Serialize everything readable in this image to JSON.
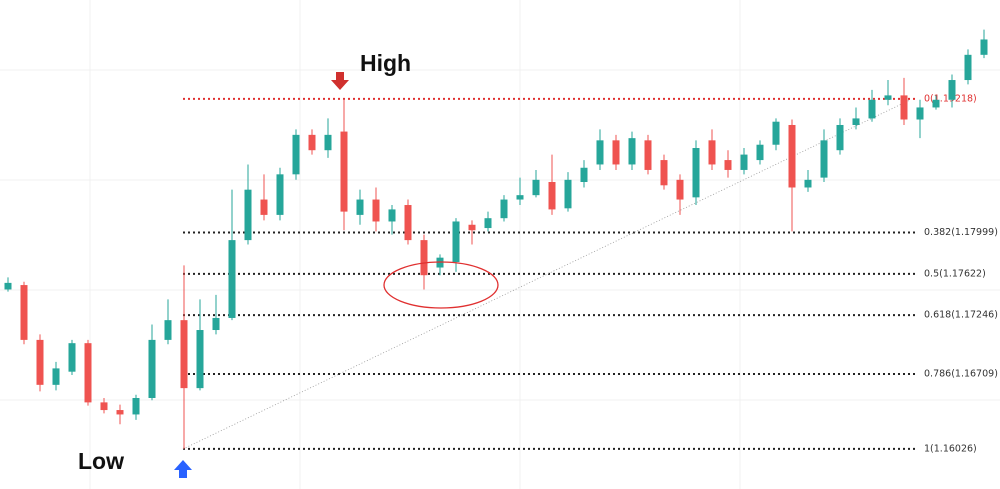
{
  "chart_data": {
    "type": "candlestick",
    "annotations": {
      "high": "High",
      "low": "Low"
    },
    "up_color": "#26a69a",
    "down_color": "#ef5350",
    "ylim": [
      1.1566,
      1.2012
    ],
    "fib_levels": [
      {
        "ratio": 0,
        "price": 1.19218,
        "label": "0(1.19218)",
        "color": "#e03030"
      },
      {
        "ratio": 0.382,
        "price": 1.17999,
        "label": "0.382(1.17999)",
        "color": "#222222"
      },
      {
        "ratio": 0.5,
        "price": 1.17622,
        "label": "0.5(1.17622)",
        "color": "#222222"
      },
      {
        "ratio": 0.618,
        "price": 1.17246,
        "label": "0.618(1.17246)",
        "color": "#222222"
      },
      {
        "ratio": 0.786,
        "price": 1.16709,
        "label": "0.786(1.16709)",
        "color": "#222222"
      },
      {
        "ratio": 1,
        "price": 1.16026,
        "label": "1(1.16026)",
        "color": "#222222"
      }
    ],
    "candles": [
      [
        1.1748,
        1.1759,
        1.1746,
        1.1754
      ],
      [
        1.1752,
        1.1755,
        1.1698,
        1.1702
      ],
      [
        1.1702,
        1.1707,
        1.1655,
        1.1661
      ],
      [
        1.1661,
        1.1682,
        1.1656,
        1.1676
      ],
      [
        1.1673,
        1.1702,
        1.167,
        1.1699
      ],
      [
        1.1699,
        1.1702,
        1.1642,
        1.1645
      ],
      [
        1.1645,
        1.1649,
        1.1635,
        1.1638
      ],
      [
        1.1638,
        1.1643,
        1.1625,
        1.1634
      ],
      [
        1.1634,
        1.1652,
        1.1629,
        1.1649
      ],
      [
        1.1649,
        1.1716,
        1.1647,
        1.1702
      ],
      [
        1.1702,
        1.1739,
        1.1698,
        1.172
      ],
      [
        1.172,
        1.177,
        1.16026,
        1.1658
      ],
      [
        1.1658,
        1.1739,
        1.1656,
        1.1711
      ],
      [
        1.1711,
        1.1743,
        1.1707,
        1.1722
      ],
      [
        1.1722,
        1.1839,
        1.172,
        1.1793
      ],
      [
        1.1793,
        1.1862,
        1.1789,
        1.1839
      ],
      [
        1.183,
        1.1853,
        1.1811,
        1.1816
      ],
      [
        1.1816,
        1.1859,
        1.1811,
        1.1853
      ],
      [
        1.1853,
        1.1894,
        1.1848,
        1.1889
      ],
      [
        1.1889,
        1.1894,
        1.1871,
        1.1875
      ],
      [
        1.1875,
        1.1904,
        1.1868,
        1.1889
      ],
      [
        1.1892,
        1.19218,
        1.1802,
        1.1819
      ],
      [
        1.1816,
        1.1839,
        1.1807,
        1.183
      ],
      [
        1.183,
        1.1841,
        1.1801,
        1.181
      ],
      [
        1.181,
        1.1825,
        1.1798,
        1.1821
      ],
      [
        1.1825,
        1.183,
        1.1789,
        1.1793
      ],
      [
        1.1793,
        1.1798,
        1.1748,
        1.1761
      ],
      [
        1.1768,
        1.178,
        1.1761,
        1.1777
      ],
      [
        1.1773,
        1.1813,
        1.1764,
        1.181
      ],
      [
        1.1807,
        1.1811,
        1.1789,
        1.1802
      ],
      [
        1.1804,
        1.1819,
        1.1801,
        1.1813
      ],
      [
        1.1813,
        1.1834,
        1.181,
        1.183
      ],
      [
        1.183,
        1.185,
        1.1825,
        1.1834
      ],
      [
        1.1834,
        1.1857,
        1.1832,
        1.1848
      ],
      [
        1.1846,
        1.1871,
        1.1816,
        1.1821
      ],
      [
        1.1822,
        1.1855,
        1.1819,
        1.1848
      ],
      [
        1.1846,
        1.1866,
        1.1841,
        1.1859
      ],
      [
        1.1862,
        1.1894,
        1.1857,
        1.1884
      ],
      [
        1.1884,
        1.1889,
        1.1857,
        1.1862
      ],
      [
        1.1862,
        1.1892,
        1.1857,
        1.1886
      ],
      [
        1.1884,
        1.1889,
        1.1853,
        1.1857
      ],
      [
        1.1866,
        1.1871,
        1.1839,
        1.1843
      ],
      [
        1.1848,
        1.1853,
        1.1816,
        1.183
      ],
      [
        1.1832,
        1.1884,
        1.1825,
        1.1877
      ],
      [
        1.1884,
        1.1894,
        1.1857,
        1.1862
      ],
      [
        1.1866,
        1.1875,
        1.185,
        1.1857
      ],
      [
        1.1857,
        1.1877,
        1.1853,
        1.1871
      ],
      [
        1.1866,
        1.1884,
        1.1862,
        1.188
      ],
      [
        1.188,
        1.1904,
        1.1875,
        1.1901
      ],
      [
        1.1898,
        1.1903,
        1.1801,
        1.1841
      ],
      [
        1.1841,
        1.1857,
        1.1837,
        1.1848
      ],
      [
        1.185,
        1.1894,
        1.1846,
        1.1884
      ],
      [
        1.1875,
        1.1904,
        1.1871,
        1.1898
      ],
      [
        1.1898,
        1.1914,
        1.1894,
        1.1904
      ],
      [
        1.1904,
        1.193,
        1.1901,
        1.1921
      ],
      [
        1.1921,
        1.1939,
        1.1916,
        1.1925
      ],
      [
        1.1925,
        1.1941,
        1.1898,
        1.1903
      ],
      [
        1.1903,
        1.1921,
        1.1886,
        1.1914
      ],
      [
        1.1914,
        1.1925,
        1.1912,
        1.1921
      ],
      [
        1.1921,
        1.1944,
        1.1914,
        1.1939
      ],
      [
        1.1939,
        1.1967,
        1.1935,
        1.1962
      ],
      [
        1.1962,
        1.1985,
        1.1959,
        1.1976
      ]
    ]
  }
}
